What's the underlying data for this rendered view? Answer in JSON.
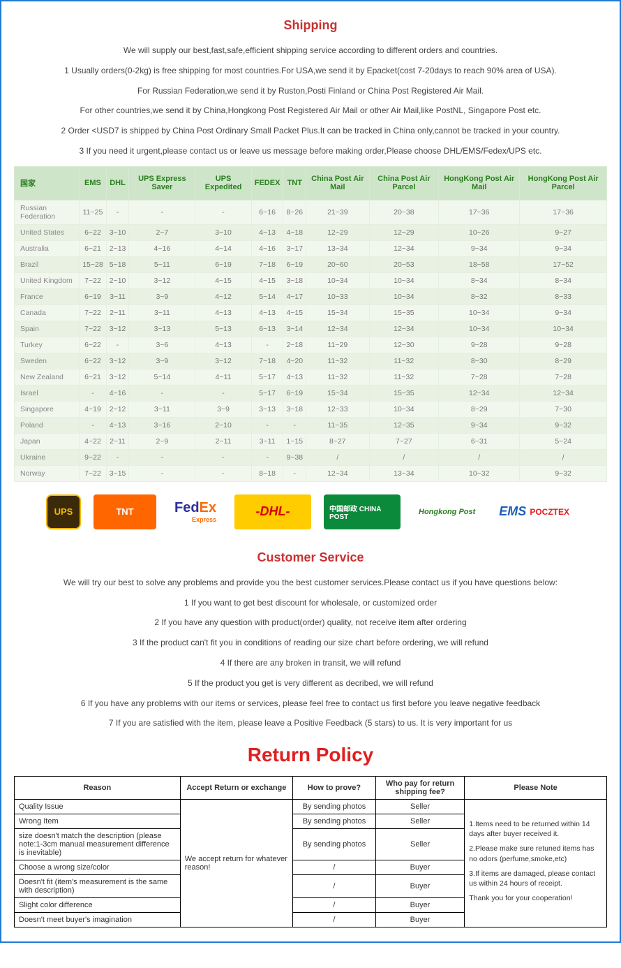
{
  "shipping": {
    "title": "Shipping",
    "intro": "We will supply our best,fast,safe,efficient shipping service according to different orders and countries.",
    "lines": [
      "1 Usually orders(0-2kg) is free shipping for most countries.For USA,we send it by Epacket(cost 7-20days to reach 90% area of USA).",
      "For Russian Federation,we send it by Ruston,Posti Finland or China Post Registered Air Mail.",
      "For other countries,we send it by China,Hongkong Post Registered Air Mail or other Air Mail,like PostNL, Singapore Post etc.",
      "2 Order <USD7 is shipped by China Post Ordinary Small Packet Plus.It can be tracked in China only,cannot be tracked in your country.",
      "3 If you need it urgent,please contact us or leave us message before making order,Please choose DHL/EMS/Fedex/UPS etc."
    ],
    "table": {
      "headers": [
        "国家",
        "EMS",
        "DHL",
        "UPS Express Saver",
        "UPS Expedited",
        "FEDEX",
        "TNT",
        "China Post Air Mail",
        "China Post Air Parcel",
        "HongKong Post Air Mail",
        "HongKong Post Air Parcel"
      ],
      "rows": [
        [
          "Russian Federation",
          "11~25",
          "-",
          "-",
          "-",
          "6~16",
          "8~26",
          "21~39",
          "20~38",
          "17~36",
          "17~36"
        ],
        [
          "United States",
          "6~22",
          "3~10",
          "2~7",
          "3~10",
          "4~13",
          "4~18",
          "12~29",
          "12~29",
          "10~26",
          "9~27"
        ],
        [
          "Australia",
          "6~21",
          "2~13",
          "4~16",
          "4~14",
          "4~16",
          "3~17",
          "13~34",
          "12~34",
          "9~34",
          "9~34"
        ],
        [
          "Brazil",
          "15~28",
          "5~18",
          "5~11",
          "6~19",
          "7~18",
          "6~19",
          "20~60",
          "20~53",
          "18~58",
          "17~52"
        ],
        [
          "United Kingdom",
          "7~22",
          "2~10",
          "3~12",
          "4~15",
          "4~15",
          "3~18",
          "10~34",
          "10~34",
          "8~34",
          "8~34"
        ],
        [
          "France",
          "6~19",
          "3~11",
          "3~9",
          "4~12",
          "5~14",
          "4~17",
          "10~33",
          "10~34",
          "8~32",
          "8~33"
        ],
        [
          "Canada",
          "7~22",
          "2~11",
          "3~11",
          "4~13",
          "4~13",
          "4~15",
          "15~34",
          "15~35",
          "10~34",
          "9~34"
        ],
        [
          "Spain",
          "7~22",
          "3~12",
          "3~13",
          "5~13",
          "6~13",
          "3~14",
          "12~34",
          "12~34",
          "10~34",
          "10~34"
        ],
        [
          "Turkey",
          "6~22",
          "-",
          "3~6",
          "4~13",
          "-",
          "2~18",
          "11~29",
          "12~30",
          "9~28",
          "9~28"
        ],
        [
          "Sweden",
          "6~22",
          "3~12",
          "3~9",
          "3~12",
          "7~18",
          "4~20",
          "11~32",
          "11~32",
          "8~30",
          "8~29"
        ],
        [
          "New Zealand",
          "6~21",
          "3~12",
          "5~14",
          "4~11",
          "5~17",
          "4~13",
          "11~32",
          "11~32",
          "7~28",
          "7~28"
        ],
        [
          "Israel",
          "-",
          "4~16",
          "-",
          "-",
          "5~17",
          "6~19",
          "15~34",
          "15~35",
          "12~34",
          "12~34"
        ],
        [
          "Singapore",
          "4~19",
          "2~12",
          "3~11",
          "3~9",
          "3~13",
          "3~18",
          "12~33",
          "10~34",
          "8~29",
          "7~30"
        ],
        [
          "Poland",
          "-",
          "4~13",
          "3~16",
          "2~10",
          "-",
          "-",
          "11~35",
          "12~35",
          "9~34",
          "9~32"
        ],
        [
          "Japan",
          "4~22",
          "2~11",
          "2~9",
          "2~11",
          "3~11",
          "1~15",
          "8~27",
          "7~27",
          "6~31",
          "5~24"
        ],
        [
          "Ukraine",
          "9~22",
          "-",
          "-",
          "-",
          "-",
          "9~38",
          "/",
          "/",
          "/",
          "/"
        ],
        [
          "Norway",
          "7~22",
          "3~15",
          "-",
          "-",
          "8~18",
          "-",
          "12~34",
          "13~34",
          "10~32",
          "9~32"
        ]
      ]
    }
  },
  "logos": {
    "ups": "UPS",
    "tnt": "TNT",
    "fedex_fed": "Fed",
    "fedex_ex": "Ex",
    "fedex_sub": "Express",
    "dhl": "-DHL-",
    "chinapost": "中国邮政 CHINA POST",
    "hkpost": "Hongkong Post",
    "ems_main": "EMS",
    "ems_sub": "POCZTEX"
  },
  "customer_service": {
    "title": "Customer Service",
    "intro": "We will try our best to solve any problems and provide you the best customer services.Please contact us if you have questions below:",
    "lines": [
      "1 If you want to get best discount for wholesale, or customized order",
      "2 If you have any question with product(order) quality, not receive item after ordering",
      "3 If the product can't fit you in conditions of reading our size chart before ordering, we will refund",
      "4 If there are any broken in transit, we will refund",
      "5 If the product you get is very different as decribed, we will refund",
      "6 If you have any problems with our items or services, please feel free to contact us first before you leave negative feedback",
      "7 If you are satisfied with the item, please leave a Positive Feedback (5 stars) to us. It is very important for us"
    ]
  },
  "return_policy": {
    "title": "Return Policy",
    "headers": [
      "Reason",
      "Accept Return or exchange",
      "How to prove?",
      "Who pay for return shipping fee?",
      "Please Note"
    ],
    "accept_text": "We accept return for whatever reason!",
    "rows": [
      {
        "reason": "Quality Issue",
        "prove": "By sending photos",
        "payer": "Seller"
      },
      {
        "reason": "Wrong Item",
        "prove": "By sending photos",
        "payer": "Seller"
      },
      {
        "reason": "size doesn't match the description (please note:1-3cm manual measurement difference is inevitable)",
        "prove": "By sending photos",
        "payer": "Seller"
      },
      {
        "reason": "Choose a wrong size/color",
        "prove": "/",
        "payer": "Buyer"
      },
      {
        "reason": "Doesn't fit (item's measurement is the same with description)",
        "prove": "/",
        "payer": "Buyer"
      },
      {
        "reason": "Slight color difference",
        "prove": "/",
        "payer": "Buyer"
      },
      {
        "reason": "Doesn't meet buyer's imagination",
        "prove": "/",
        "payer": "Buyer"
      }
    ],
    "notes": [
      "1.Items need to be returned within 14 days after buyer received it.",
      "2.Please make sure retuned items has no odors (perfume,smoke,etc)",
      "3.If items are damaged, please contact us within 24 hours of receipt.",
      "Thank you for your cooperation!"
    ]
  }
}
